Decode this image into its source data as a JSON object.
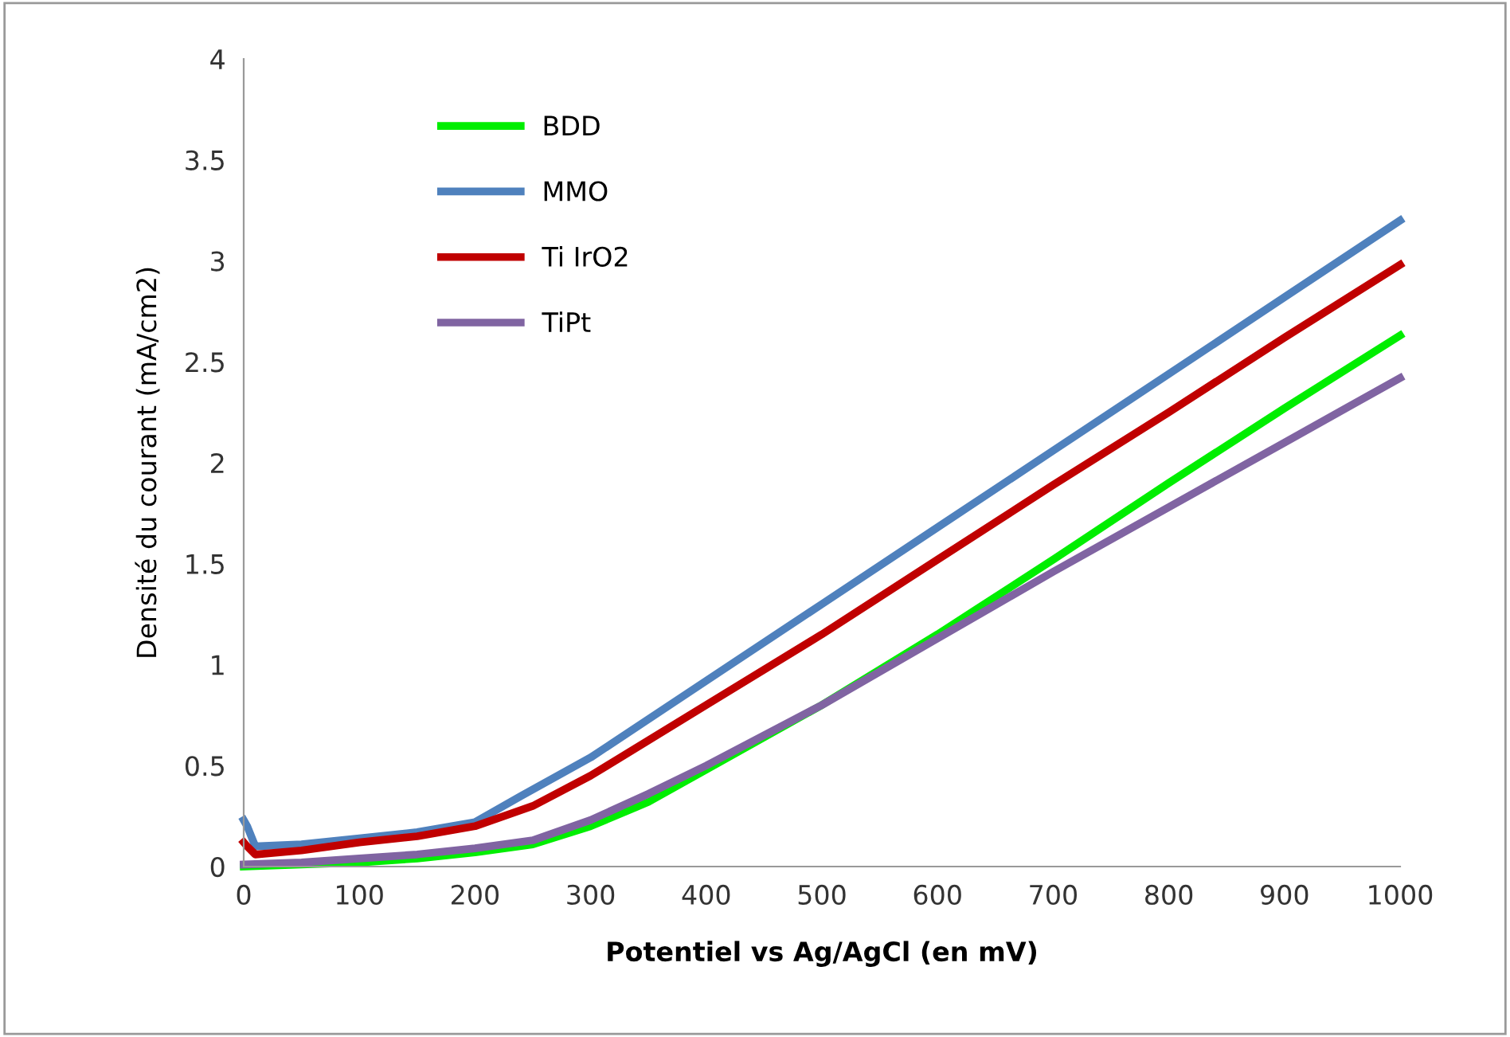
{
  "chart_data": {
    "type": "line",
    "xlabel": "Potentiel vs Ag/AgCl (en mV)",
    "ylabel": "Densité du courant (mA/cm2)",
    "xlim": [
      0,
      1000
    ],
    "ylim": [
      0,
      4
    ],
    "xticks": [
      0,
      100,
      200,
      300,
      400,
      500,
      600,
      700,
      800,
      900,
      1000
    ],
    "yticks": [
      0,
      0.5,
      1,
      1.5,
      2,
      2.5,
      3,
      3.5,
      4
    ],
    "grid": false,
    "legend": "top left",
    "marker": "none",
    "line_style": "solid",
    "series": [
      {
        "name": "BDD",
        "color": "#00ee00",
        "x": [
          0,
          50,
          100,
          150,
          200,
          250,
          300,
          350,
          400,
          500,
          600,
          700,
          800,
          900,
          1000
        ],
        "values": [
          0,
          0.01,
          0.02,
          0.04,
          0.07,
          0.11,
          0.2,
          0.32,
          0.48,
          0.8,
          1.15,
          1.52,
          1.9,
          2.27,
          2.63
        ]
      },
      {
        "name": "MMO",
        "color": "#4f81bd",
        "x": [
          0,
          3,
          10,
          50,
          100,
          150,
          200,
          240,
          300,
          400,
          500,
          600,
          700,
          800,
          900,
          1000
        ],
        "values": [
          0.23,
          0.2,
          0.1,
          0.11,
          0.14,
          0.17,
          0.22,
          0.35,
          0.54,
          0.92,
          1.3,
          1.68,
          2.06,
          2.44,
          2.82,
          3.2
        ]
      },
      {
        "name": "Ti IrO2",
        "color": "#c00000",
        "x": [
          0,
          3,
          10,
          50,
          100,
          150,
          200,
          250,
          300,
          400,
          500,
          600,
          700,
          800,
          900,
          1000
        ],
        "values": [
          0.12,
          0.1,
          0.06,
          0.08,
          0.12,
          0.15,
          0.2,
          0.3,
          0.45,
          0.8,
          1.15,
          1.52,
          1.89,
          2.25,
          2.62,
          2.98
        ]
      },
      {
        "name": "TiPt",
        "color": "#8064a2",
        "x": [
          0,
          50,
          100,
          150,
          200,
          250,
          300,
          350,
          400,
          500,
          600,
          700,
          800,
          900,
          1000
        ],
        "values": [
          0.01,
          0.02,
          0.04,
          0.06,
          0.09,
          0.13,
          0.23,
          0.36,
          0.5,
          0.8,
          1.13,
          1.46,
          1.78,
          2.1,
          2.42
        ]
      }
    ]
  }
}
